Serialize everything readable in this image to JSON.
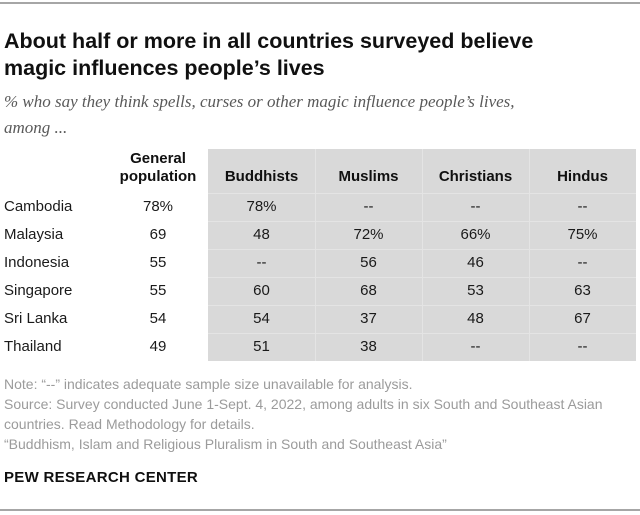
{
  "header": {
    "title_lines": [
      "About half or more in all countries surveyed believe",
      "magic influences people’s lives"
    ],
    "subtitle_lines": [
      "% who say they think spells, curses or other magic influence people’s lives,",
      "among ..."
    ]
  },
  "chart_data": {
    "type": "table",
    "title": "About half or more in all countries surveyed believe magic influences people’s lives",
    "subtitle": "% who say they think spells, curses or other magic influence people’s lives, among ...",
    "columns": [
      "",
      "General population",
      "Buddhists",
      "Muslims",
      "Christians",
      "Hindus"
    ],
    "rows": [
      {
        "country": "Cambodia",
        "values": [
          "78%",
          "78%",
          "--",
          "--",
          "--"
        ]
      },
      {
        "country": "Malaysia",
        "values": [
          "69",
          "48",
          "72%",
          "66%",
          "75%"
        ]
      },
      {
        "country": "Indonesia",
        "values": [
          "55",
          "--",
          "56",
          "46",
          "--"
        ]
      },
      {
        "country": "Singapore",
        "values": [
          "55",
          "60",
          "68",
          "53",
          "63"
        ]
      },
      {
        "country": "Sri Lanka",
        "values": [
          "54",
          "54",
          "37",
          "48",
          "67"
        ]
      },
      {
        "country": "Thailand",
        "values": [
          "49",
          "51",
          "38",
          "--",
          "--"
        ]
      }
    ],
    "missing_marker": "--",
    "layout": {
      "grouped_columns_start": 2,
      "grouped_columns_background": "#d9d9d9"
    }
  },
  "footer": {
    "note": "Note: “--” indicates adequate sample size unavailable for analysis.",
    "source": "Source: Survey conducted June 1-Sept. 4, 2022, among adults in six South and Southeast Asian countries. Read Methodology for details.",
    "citation": "“Buddhism, Islam and Religious Pluralism in South and Southeast Asia”",
    "brand": "PEW RESEARCH CENTER"
  },
  "colors": {
    "panel_gray": "#d9d9d9",
    "note_gray": "#9b9b9b",
    "rule_gray": "#a6a6a6",
    "title_color": "#101010",
    "subtitle_gray": "#595959"
  }
}
